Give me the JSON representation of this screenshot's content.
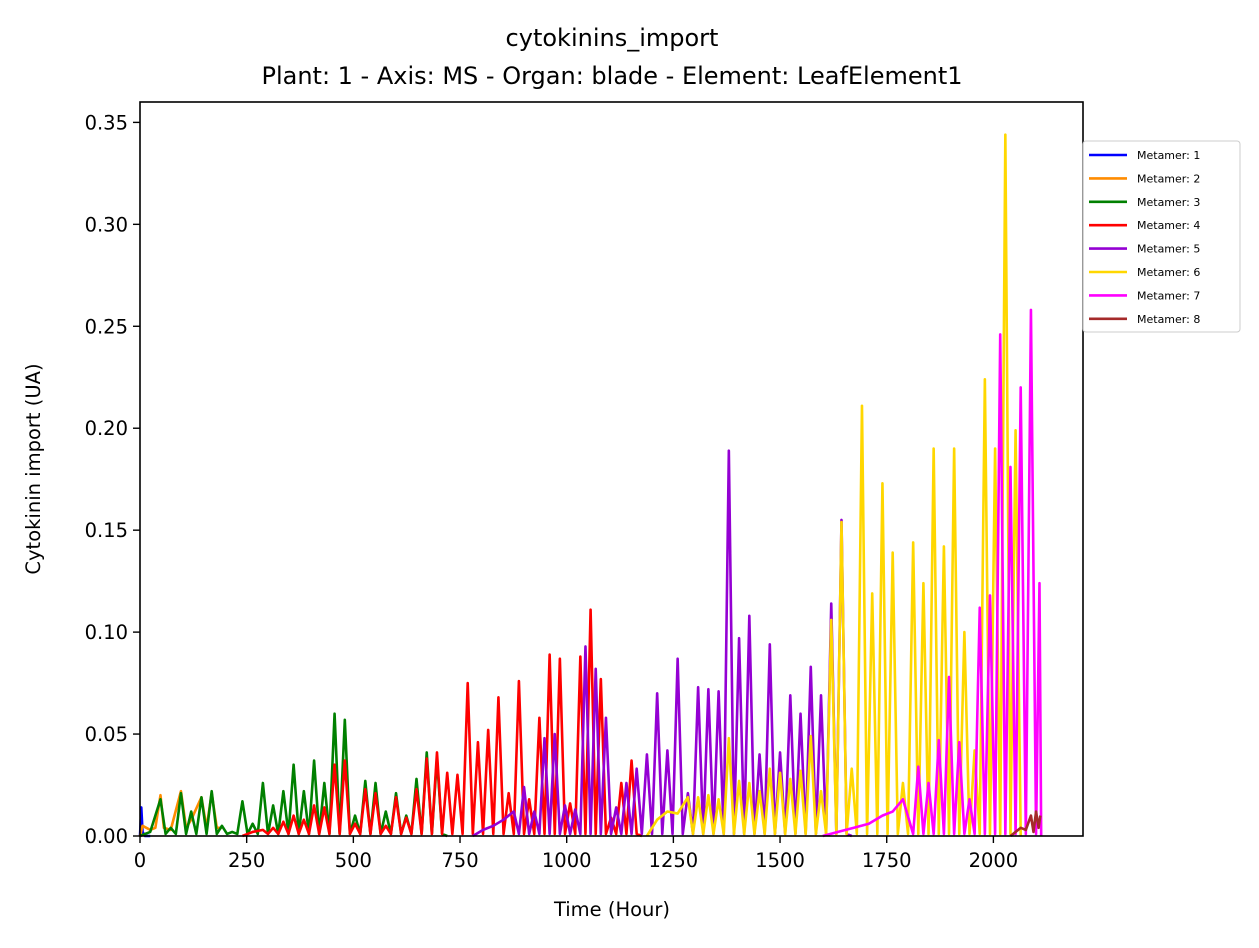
{
  "chart_data": {
    "type": "line",
    "title": "cytokinins_import",
    "subtitle": "Plant: 1 - Axis: MS - Organ: blade - Element: LeafElement1",
    "xlabel": "Time (Hour)",
    "ylabel": "Cytokinin import (UA)",
    "xlim": [
      0,
      2210
    ],
    "ylim": [
      0,
      0.36
    ],
    "xticks": [
      0,
      250,
      500,
      750,
      1000,
      1250,
      1500,
      1750,
      2000
    ],
    "xtick_labels": [
      "0",
      "250",
      "500",
      "750",
      "1000",
      "1250",
      "1500",
      "1750",
      "2000"
    ],
    "yticks": [
      0.0,
      0.05,
      0.1,
      0.15,
      0.2,
      0.25,
      0.3,
      0.35
    ],
    "ytick_labels": [
      "0.00",
      "0.05",
      "0.10",
      "0.15",
      "0.20",
      "0.25",
      "0.30",
      "0.35"
    ],
    "grid": false,
    "legend_position": "right-outside-top",
    "series": [
      {
        "name": "Metamer: 1",
        "color": "#0000ff",
        "x": [
          0,
          3,
          6,
          12,
          24
        ],
        "y": [
          0.0,
          0.014,
          0.002,
          0.0,
          0.0
        ]
      },
      {
        "name": "Metamer: 2",
        "color": "#ff8c00",
        "x": [
          0,
          6,
          24,
          36,
          48,
          56,
          72,
          96,
          108,
          120,
          144,
          156,
          168,
          180,
          192
        ],
        "y": [
          0.0,
          0.005,
          0.003,
          0.004,
          0.02,
          0.004,
          0.003,
          0.022,
          0.004,
          0.008,
          0.019,
          0.004,
          0.021,
          0.004,
          0.004
        ]
      },
      {
        "name": "Metamer: 3",
        "color": "#008000",
        "x": [
          0,
          24,
          48,
          60,
          72,
          84,
          96,
          108,
          120,
          132,
          144,
          156,
          168,
          180,
          192,
          204,
          216,
          228,
          240,
          252,
          264,
          276,
          288,
          300,
          312,
          324,
          336,
          348,
          360,
          372,
          384,
          396,
          408,
          420,
          432,
          444,
          456,
          468,
          480,
          492,
          504,
          516,
          528,
          540,
          552,
          564,
          576,
          588,
          600,
          612,
          624,
          636,
          648,
          660,
          672,
          684,
          696,
          708,
          720
        ],
        "y": [
          0.0,
          0.002,
          0.018,
          0.001,
          0.004,
          0.001,
          0.021,
          0.001,
          0.012,
          0.001,
          0.019,
          0.001,
          0.022,
          0.001,
          0.005,
          0.001,
          0.002,
          0.001,
          0.017,
          0.001,
          0.006,
          0.001,
          0.026,
          0.001,
          0.015,
          0.001,
          0.022,
          0.001,
          0.035,
          0.001,
          0.022,
          0.001,
          0.037,
          0.001,
          0.026,
          0.001,
          0.06,
          0.001,
          0.057,
          0.001,
          0.01,
          0.001,
          0.027,
          0.001,
          0.026,
          0.001,
          0.012,
          0.001,
          0.021,
          0.001,
          0.01,
          0.001,
          0.028,
          0.001,
          0.041,
          0.001,
          0.038,
          0.001,
          0.0
        ]
      },
      {
        "name": "Metamer: 4",
        "color": "#ff0000",
        "x": [
          240,
          264,
          288,
          300,
          312,
          324,
          336,
          348,
          360,
          372,
          384,
          396,
          408,
          420,
          432,
          444,
          456,
          468,
          480,
          492,
          504,
          516,
          528,
          540,
          552,
          564,
          576,
          588,
          600,
          612,
          624,
          636,
          648,
          660,
          672,
          684,
          696,
          708,
          720,
          732,
          744,
          756,
          768,
          780,
          792,
          804,
          816,
          828,
          840,
          852,
          864,
          876,
          888,
          900,
          912,
          924,
          936,
          948,
          960,
          972,
          984,
          996,
          1008,
          1020,
          1032,
          1044,
          1056,
          1068,
          1080,
          1092,
          1104,
          1116,
          1128,
          1140,
          1152,
          1164,
          1176
        ],
        "y": [
          0.0,
          0.002,
          0.003,
          0.001,
          0.004,
          0.001,
          0.007,
          0.001,
          0.01,
          0.001,
          0.008,
          0.001,
          0.015,
          0.001,
          0.014,
          0.001,
          0.035,
          0.001,
          0.037,
          0.001,
          0.006,
          0.001,
          0.023,
          0.001,
          0.021,
          0.001,
          0.005,
          0.001,
          0.019,
          0.001,
          0.009,
          0.001,
          0.023,
          0.001,
          0.038,
          0.001,
          0.041,
          0.001,
          0.031,
          0.001,
          0.03,
          0.001,
          0.075,
          0.001,
          0.046,
          0.001,
          0.052,
          0.001,
          0.068,
          0.001,
          0.021,
          0.001,
          0.076,
          0.001,
          0.018,
          0.001,
          0.058,
          0.001,
          0.089,
          0.001,
          0.087,
          0.001,
          0.016,
          0.001,
          0.088,
          0.001,
          0.111,
          0.001,
          0.077,
          0.001,
          0.009,
          0.001,
          0.026,
          0.001,
          0.037,
          0.001,
          0.0
        ]
      },
      {
        "name": "Metamer: 5",
        "color": "#9400d3",
        "x": [
          780,
          804,
          828,
          852,
          876,
          888,
          900,
          912,
          924,
          936,
          948,
          960,
          972,
          984,
          996,
          1008,
          1020,
          1032,
          1044,
          1056,
          1068,
          1080,
          1092,
          1104,
          1116,
          1128,
          1140,
          1152,
          1164,
          1176,
          1188,
          1200,
          1212,
          1224,
          1236,
          1248,
          1260,
          1272,
          1284,
          1296,
          1308,
          1320,
          1332,
          1344,
          1356,
          1368,
          1380,
          1392,
          1404,
          1416,
          1428,
          1440,
          1452,
          1464,
          1476,
          1488,
          1500,
          1512,
          1524,
          1536,
          1548,
          1560,
          1572,
          1584,
          1596,
          1608,
          1620,
          1632,
          1644,
          1656,
          1668
        ],
        "y": [
          0.0,
          0.003,
          0.005,
          0.008,
          0.012,
          0.001,
          0.024,
          0.001,
          0.012,
          0.001,
          0.048,
          0.001,
          0.05,
          0.001,
          0.015,
          0.001,
          0.013,
          0.001,
          0.093,
          0.001,
          0.082,
          0.001,
          0.058,
          0.001,
          0.014,
          0.001,
          0.026,
          0.001,
          0.033,
          0.001,
          0.04,
          0.001,
          0.07,
          0.001,
          0.042,
          0.001,
          0.087,
          0.001,
          0.021,
          0.001,
          0.073,
          0.001,
          0.072,
          0.001,
          0.071,
          0.001,
          0.189,
          0.001,
          0.097,
          0.001,
          0.108,
          0.001,
          0.04,
          0.001,
          0.094,
          0.001,
          0.041,
          0.001,
          0.069,
          0.001,
          0.06,
          0.001,
          0.083,
          0.001,
          0.069,
          0.001,
          0.114,
          0.001,
          0.155,
          0.001,
          0.0
        ]
      },
      {
        "name": "Metamer: 6",
        "color": "#ffd700",
        "x": [
          1188,
          1212,
          1236,
          1260,
          1284,
          1296,
          1308,
          1320,
          1332,
          1344,
          1356,
          1368,
          1380,
          1392,
          1404,
          1416,
          1428,
          1440,
          1452,
          1464,
          1476,
          1488,
          1500,
          1512,
          1524,
          1536,
          1548,
          1560,
          1572,
          1584,
          1596,
          1608,
          1620,
          1632,
          1644,
          1656,
          1668,
          1680,
          1692,
          1704,
          1716,
          1728,
          1740,
          1752,
          1764,
          1776,
          1788,
          1800,
          1812,
          1824,
          1836,
          1848,
          1860,
          1872,
          1884,
          1896,
          1908,
          1920,
          1932,
          1944,
          1956,
          1968,
          1980,
          1992,
          2004,
          2016,
          2028,
          2040,
          2052,
          2064
        ],
        "y": [
          0.0,
          0.008,
          0.012,
          0.011,
          0.019,
          0.001,
          0.019,
          0.001,
          0.02,
          0.001,
          0.018,
          0.001,
          0.048,
          0.001,
          0.027,
          0.001,
          0.026,
          0.001,
          0.022,
          0.001,
          0.033,
          0.001,
          0.031,
          0.001,
          0.028,
          0.001,
          0.032,
          0.001,
          0.049,
          0.001,
          0.022,
          0.001,
          0.106,
          0.001,
          0.154,
          0.001,
          0.033,
          0.001,
          0.211,
          0.001,
          0.119,
          0.001,
          0.173,
          0.001,
          0.139,
          0.001,
          0.026,
          0.001,
          0.144,
          0.001,
          0.124,
          0.001,
          0.19,
          0.001,
          0.142,
          0.001,
          0.19,
          0.001,
          0.1,
          0.001,
          0.042,
          0.001,
          0.224,
          0.001,
          0.19,
          0.001,
          0.344,
          0.001,
          0.199,
          0.0
        ]
      },
      {
        "name": "Metamer: 7",
        "color": "#ff00ff",
        "x": [
          1600,
          1636,
          1672,
          1708,
          1740,
          1764,
          1788,
          1812,
          1824,
          1836,
          1848,
          1860,
          1872,
          1884,
          1896,
          1908,
          1920,
          1932,
          1944,
          1956,
          1968,
          1980,
          1992,
          2004,
          2016,
          2028,
          2040,
          2052,
          2064,
          2076,
          2088,
          2100,
          2108,
          2112
        ],
        "y": [
          0.0,
          0.002,
          0.004,
          0.006,
          0.01,
          0.012,
          0.018,
          0.001,
          0.034,
          0.001,
          0.026,
          0.001,
          0.047,
          0.001,
          0.078,
          0.001,
          0.046,
          0.001,
          0.018,
          0.001,
          0.112,
          0.001,
          0.118,
          0.001,
          0.246,
          0.001,
          0.181,
          0.001,
          0.22,
          0.001,
          0.258,
          0.001,
          0.124,
          0.0
        ]
      },
      {
        "name": "Metamer: 8",
        "color": "#a52a2a",
        "x": [
          2040,
          2064,
          2076,
          2088,
          2094,
          2100,
          2106,
          2110
        ],
        "y": [
          0.0,
          0.004,
          0.003,
          0.01,
          0.002,
          0.012,
          0.004,
          0.01
        ]
      }
    ]
  }
}
